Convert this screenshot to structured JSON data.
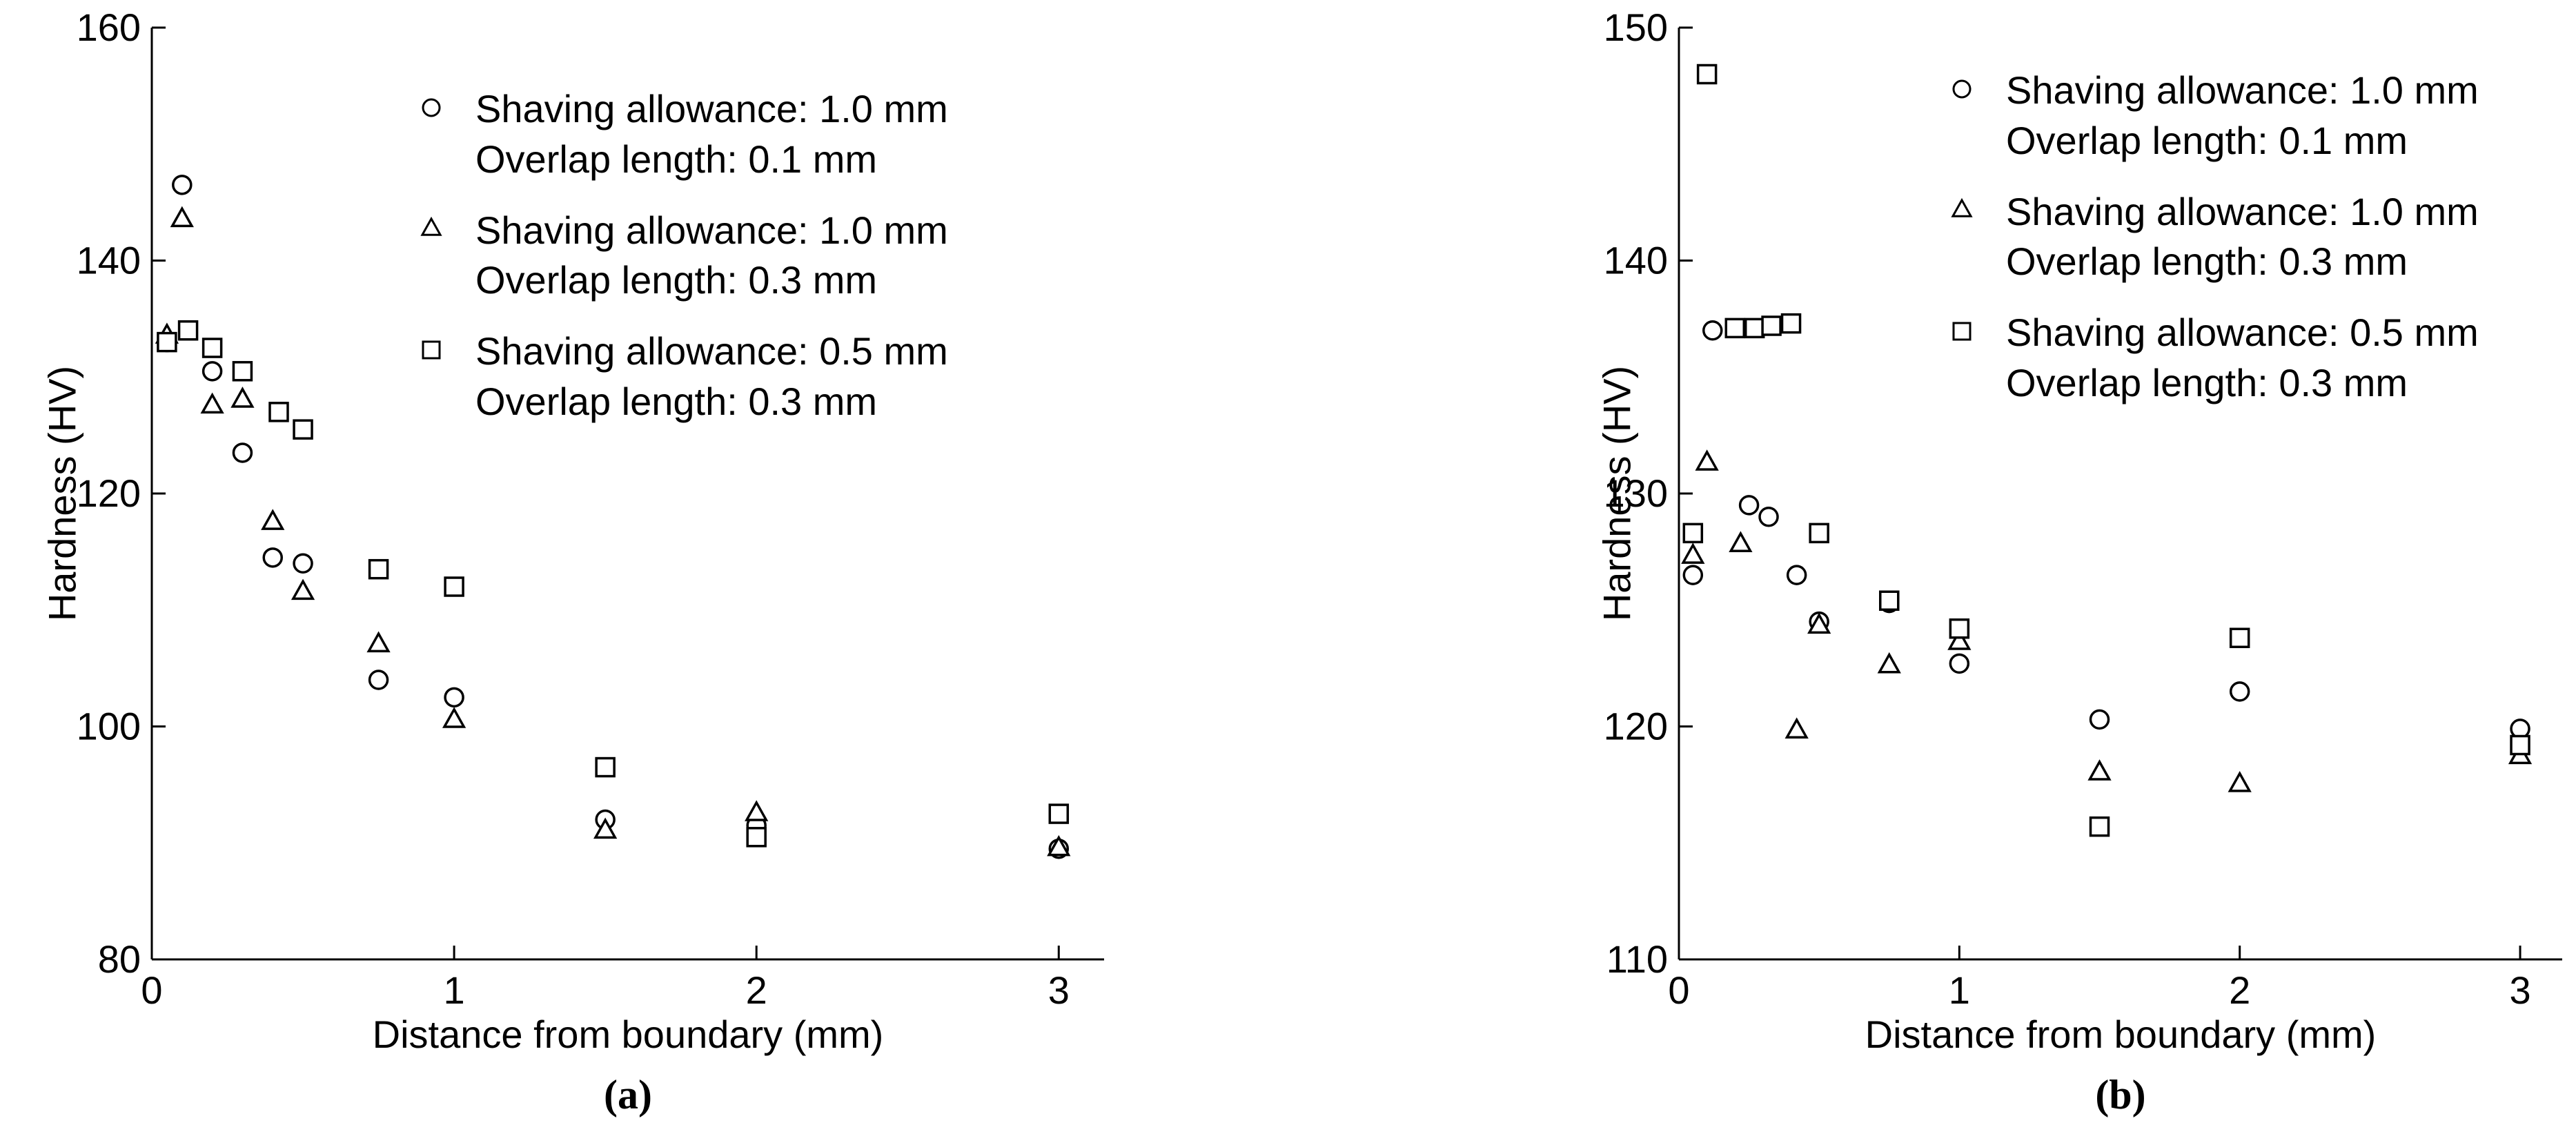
{
  "figure": {
    "background": "#ffffff",
    "axis_color": "#000000",
    "marker_fill": "#ffffff",
    "marker_stroke": "#000000"
  },
  "chart_data": [
    {
      "type": "scatter",
      "caption": "(a)",
      "xlabel": "Distance from boundary (mm)",
      "ylabel": "Hardness (HV)",
      "xlim": [
        0,
        3.15
      ],
      "ylim": [
        80,
        160
      ],
      "xticks": [
        0,
        1,
        2,
        3
      ],
      "yticks": [
        80,
        100,
        120,
        140,
        160
      ],
      "grid": false,
      "legend_position": "upper right",
      "series": [
        {
          "name": "Shaving allowance: 1.0 mm, Overlap length: 0.1 mm",
          "marker": "circle",
          "legend": [
            "Shaving allowance: 1.0 mm",
            "Overlap length: 0.1 mm"
          ],
          "points": [
            [
              0.05,
              133
            ],
            [
              0.1,
              146.5
            ],
            [
              0.2,
              130.5
            ],
            [
              0.3,
              123.5
            ],
            [
              0.4,
              114.5
            ],
            [
              0.5,
              114
            ],
            [
              0.75,
              104
            ],
            [
              1,
              102.5
            ],
            [
              1.5,
              92
            ],
            [
              2,
              91.5
            ],
            [
              3,
              89.5
            ]
          ]
        },
        {
          "name": "Shaving allowance: 1.0 mm, Overlap length: 0.3 mm",
          "marker": "triangle",
          "legend": [
            "Shaving allowance: 1.0 mm",
            "Overlap length: 0.3 mm"
          ],
          "points": [
            [
              0.05,
              133.5
            ],
            [
              0.1,
              143.5
            ],
            [
              0.2,
              127.5
            ],
            [
              0.3,
              128
            ],
            [
              0.4,
              117.5
            ],
            [
              0.5,
              111.5
            ],
            [
              0.75,
              107
            ],
            [
              1,
              100.5
            ],
            [
              1.5,
              91
            ],
            [
              2,
              92.5
            ],
            [
              3,
              89.5
            ]
          ]
        },
        {
          "name": "Shaving allowance: 0.5 mm, Overlap length: 0.3 mm",
          "marker": "square",
          "legend": [
            "Shaving allowance: 0.5 mm",
            "Overlap length: 0.3 mm"
          ],
          "points": [
            [
              0.05,
              133
            ],
            [
              0.12,
              134
            ],
            [
              0.2,
              132.5
            ],
            [
              0.3,
              130.5
            ],
            [
              0.42,
              127
            ],
            [
              0.5,
              125.5
            ],
            [
              0.75,
              113.5
            ],
            [
              1,
              112
            ],
            [
              1.5,
              96.5
            ],
            [
              2,
              90.5
            ],
            [
              3,
              92.5
            ]
          ]
        }
      ]
    },
    {
      "type": "scatter",
      "caption": "(b)",
      "xlabel": "Distance from boundary (mm)",
      "ylabel": "Hardness (HV)",
      "xlim": [
        0,
        3.15
      ],
      "ylim": [
        110,
        150
      ],
      "xticks": [
        0,
        1,
        2,
        3
      ],
      "yticks": [
        110,
        120,
        130,
        140,
        150
      ],
      "grid": false,
      "legend_position": "upper right",
      "series": [
        {
          "name": "Shaving allowance: 1.0 mm, Overlap length: 0.1 mm",
          "marker": "circle",
          "legend": [
            "Shaving allowance: 1.0 mm",
            "Overlap length: 0.1 mm"
          ],
          "points": [
            [
              0.05,
              126.5
            ],
            [
              0.12,
              137
            ],
            [
              0.25,
              129.5
            ],
            [
              0.32,
              129
            ],
            [
              0.42,
              126.5
            ],
            [
              0.5,
              124.5
            ],
            [
              0.75,
              125.3
            ],
            [
              1,
              122.7
            ],
            [
              1.5,
              120.3
            ],
            [
              2,
              121.5
            ],
            [
              3,
              119.9
            ]
          ]
        },
        {
          "name": "Shaving allowance: 1.0 mm, Overlap length: 0.3 mm",
          "marker": "triangle",
          "legend": [
            "Shaving allowance: 1.0 mm",
            "Overlap length: 0.3 mm"
          ],
          "points": [
            [
              0.05,
              127.3
            ],
            [
              0.1,
              131.3
            ],
            [
              0.22,
              127.8
            ],
            [
              0.42,
              119.8
            ],
            [
              0.5,
              124.3
            ],
            [
              0.75,
              122.6
            ],
            [
              1,
              123.6
            ],
            [
              1.5,
              118
            ],
            [
              2,
              117.5
            ],
            [
              3,
              118.7
            ]
          ]
        },
        {
          "name": "Shaving allowance: 0.5 mm, Overlap length: 0.3 mm",
          "marker": "square",
          "legend": [
            "Shaving allowance: 0.5 mm",
            "Overlap length: 0.3 mm"
          ],
          "points": [
            [
              0.05,
              128.3
            ],
            [
              0.1,
              148
            ],
            [
              0.2,
              137.1
            ],
            [
              0.27,
              137.1
            ],
            [
              0.33,
              137.2
            ],
            [
              0.4,
              137.3
            ],
            [
              0.5,
              128.3
            ],
            [
              0.75,
              125.4
            ],
            [
              1,
              124.2
            ],
            [
              1.5,
              115.7
            ],
            [
              2,
              123.8
            ],
            [
              3,
              119.2
            ]
          ]
        }
      ]
    }
  ]
}
